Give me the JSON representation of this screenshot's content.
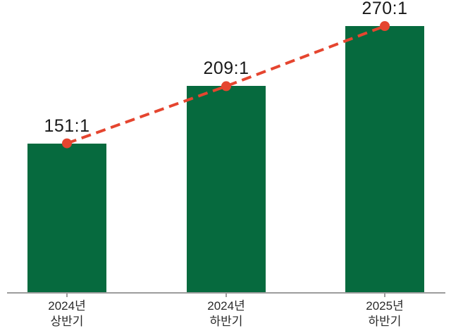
{
  "chart_data": {
    "type": "bar",
    "title": "",
    "categories": [
      "2024년\n상반기",
      "2024년\n하반기",
      "2025년\n하반기"
    ],
    "values": [
      151,
      209,
      270
    ],
    "value_labels": [
      "151:1",
      "209:1",
      "270:1"
    ],
    "xlabel": "",
    "ylabel": "",
    "ylim": [
      0,
      300
    ],
    "grid": false,
    "legend": false,
    "y_axis_visible": false,
    "trend_line": {
      "style": "dashed",
      "markers": "circle",
      "connects": [
        "151:1",
        "209:1",
        "270:1"
      ]
    }
  },
  "colors": {
    "bar": "#066a3e",
    "trend_line": "#e5452f",
    "marker": "#e5452f",
    "axis": "#9c9c9c",
    "value_label": "#191919",
    "category_label": "#2a2a2a",
    "background": "#ffffff"
  }
}
